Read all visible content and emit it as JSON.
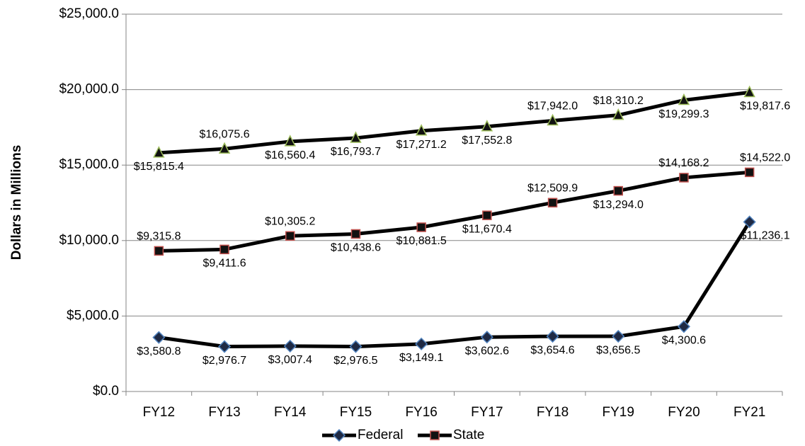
{
  "chart_data": {
    "type": "line",
    "y_label": "Dollars in Millions",
    "categories": [
      "FY12",
      "FY13",
      "FY14",
      "FY15",
      "FY16",
      "FY17",
      "FY18",
      "FY19",
      "FY20",
      "FY21"
    ],
    "line_color": "#000000",
    "grid": true,
    "legend": "bottom",
    "ylim": [
      0,
      25000
    ],
    "yticks": [
      {
        "value": 0,
        "label": "$0.0"
      },
      {
        "value": 5000,
        "label": "$5,000.0"
      },
      {
        "value": 10000,
        "label": "$10,000.0"
      },
      {
        "value": 15000,
        "label": "$15,000.0"
      },
      {
        "value": 20000,
        "label": "$20,000.0"
      },
      {
        "value": 25000,
        "label": "$25,000.0"
      }
    ],
    "series": [
      {
        "name": "Federal",
        "color": "#4f81bd",
        "fill": "#1f2a44",
        "marker": "diamond",
        "values": [
          3580.8,
          2976.7,
          3007.4,
          2976.5,
          3149.1,
          3602.6,
          3654.6,
          3656.5,
          4300.6,
          11236.1
        ],
        "value_labels": [
          "$3,580.8",
          "$2,976.7",
          "$3,007.4",
          "$2,976.5",
          "$3,149.1",
          "$3,602.6",
          "$3,654.6",
          "$3,656.5",
          "$4,300.6",
          "$11,236.1"
        ]
      },
      {
        "name": "State",
        "color": "#c0504d",
        "fill": "#111111",
        "marker": "square",
        "values": [
          9315.8,
          9411.6,
          10305.2,
          10438.6,
          10881.5,
          11670.4,
          12509.9,
          13294.0,
          14168.2,
          14522.0
        ],
        "value_labels": [
          "$9,315.8",
          "$9,411.6",
          "$10,305.2",
          "$10,438.6",
          "$10,881.5",
          "$11,670.4",
          "$12,509.9",
          "$13,294.0",
          "$14,168.2",
          "$14,522.0"
        ]
      },
      {
        "color": "#9bbb59",
        "fill": "#111111",
        "marker": "triangle",
        "values": [
          15815.4,
          16075.6,
          16560.4,
          16793.7,
          17271.2,
          17552.8,
          17942.0,
          18310.2,
          19299.3,
          19817.6
        ],
        "value_labels": [
          "$15,815.4",
          "$16,075.6",
          "$16,560.4",
          "$16,793.7",
          "$17,271.2",
          "$17,552.8",
          "$17,942.0",
          "$18,310.2",
          "$19,299.3",
          "$19,817.6"
        ]
      }
    ]
  }
}
